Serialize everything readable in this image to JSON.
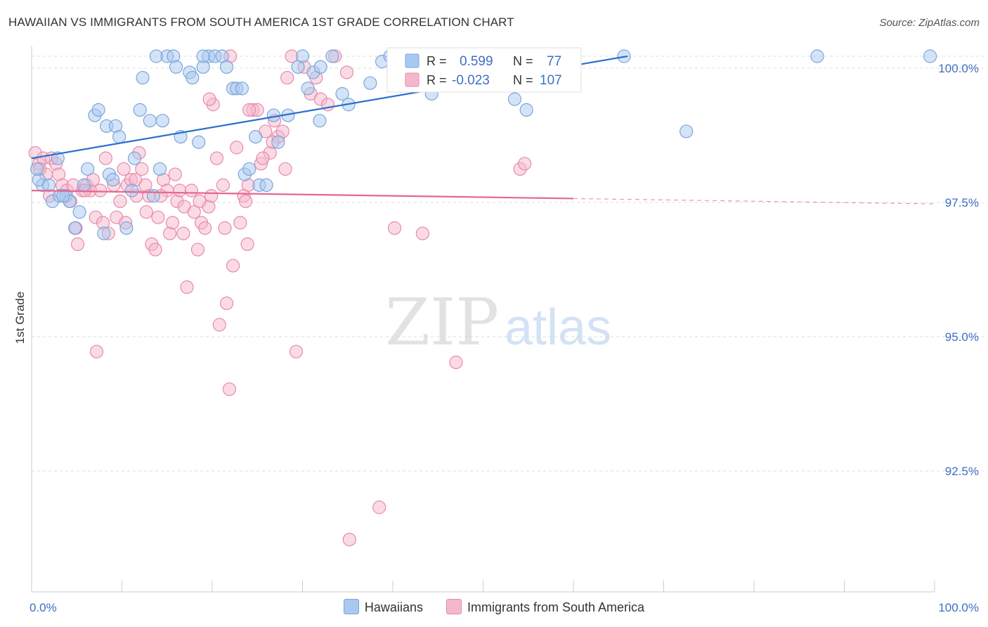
{
  "title": "HAWAIIAN VS IMMIGRANTS FROM SOUTH AMERICA 1ST GRADE CORRELATION CHART",
  "source": "Source: ZipAtlas.com",
  "watermark": {
    "zip": "ZIP",
    "atlas": "atlas"
  },
  "colors": {
    "blue_fill": "#a9c8f0",
    "blue_stroke": "#7aa6dc",
    "blue_line": "#2a6fcd",
    "pink_fill": "#f5b7cc",
    "pink_stroke": "#e88aa9",
    "pink_line": "#e4688f",
    "value_text": "#3d6fc4",
    "grid": "#dddddd"
  },
  "stats_legend": {
    "rows": [
      {
        "r_label": "R =",
        "r_value": "0.599",
        "n_label": "N =",
        "n_value": "77",
        "color": "blue"
      },
      {
        "r_label": "R =",
        "r_value": "-0.023",
        "n_label": "N =",
        "n_value": "107",
        "color": "pink"
      }
    ]
  },
  "chart_data": {
    "type": "scatter",
    "title": "HAWAIIAN VS IMMIGRANTS FROM SOUTH AMERICA 1ST GRADE CORRELATION CHART",
    "xlabel": "",
    "ylabel": "1st Grade",
    "xlim": [
      0,
      100
    ],
    "ylim": [
      90.0,
      100.4
    ],
    "x_tick_labels": [
      "0.0%",
      "100.0%"
    ],
    "y_ticks": [
      {
        "value": 100.0,
        "label": "100.0%"
      },
      {
        "value": 97.5,
        "label": "97.5%"
      },
      {
        "value": 95.0,
        "label": "95.0%"
      },
      {
        "value": 92.5,
        "label": "92.5%"
      }
    ],
    "grid": "horizontal dashed",
    "legend_position": "bottom-center",
    "series": [
      {
        "name": "Hawaiians",
        "color": "#a9c8f0",
        "trend": {
          "x0": 0,
          "y0": 98.1,
          "x1": 66,
          "y1": 100.0,
          "dashed_to": 66
        },
        "points": [
          [
            1.2,
            97.6
          ],
          [
            0.8,
            97.7
          ],
          [
            1.9,
            97.6
          ],
          [
            2.3,
            97.3
          ],
          [
            2.9,
            98.1
          ],
          [
            3.1,
            97.4
          ],
          [
            3.8,
            97.4
          ],
          [
            4.2,
            97.3
          ],
          [
            4.8,
            96.8
          ],
          [
            5.3,
            97.1
          ],
          [
            5.8,
            97.6
          ],
          [
            6.2,
            97.9
          ],
          [
            7.0,
            98.9
          ],
          [
            7.4,
            99.0
          ],
          [
            8.3,
            98.7
          ],
          [
            9.3,
            98.7
          ],
          [
            9.7,
            98.5
          ],
          [
            8.6,
            97.8
          ],
          [
            8.0,
            96.7
          ],
          [
            10.5,
            96.8
          ],
          [
            11.1,
            97.5
          ],
          [
            11.4,
            98.1
          ],
          [
            12.0,
            99.0
          ],
          [
            12.3,
            99.6
          ],
          [
            13.1,
            98.8
          ],
          [
            13.5,
            97.4
          ],
          [
            14.2,
            97.9
          ],
          [
            14.5,
            98.8
          ],
          [
            15.0,
            100.0
          ],
          [
            15.7,
            100.0
          ],
          [
            13.8,
            100.0
          ],
          [
            16.0,
            99.8
          ],
          [
            16.5,
            98.5
          ],
          [
            17.5,
            99.7
          ],
          [
            17.8,
            99.6
          ],
          [
            18.5,
            98.4
          ],
          [
            19.0,
            99.8
          ],
          [
            19.6,
            100.0
          ],
          [
            20.3,
            100.0
          ],
          [
            21.1,
            100.0
          ],
          [
            21.6,
            99.8
          ],
          [
            22.3,
            99.4
          ],
          [
            22.7,
            99.4
          ],
          [
            23.3,
            99.4
          ],
          [
            23.6,
            97.8
          ],
          [
            24.1,
            97.9
          ],
          [
            24.8,
            98.5
          ],
          [
            25.2,
            97.6
          ],
          [
            26.8,
            98.9
          ],
          [
            27.3,
            98.4
          ],
          [
            28.4,
            98.9
          ],
          [
            29.5,
            99.8
          ],
          [
            30.0,
            100.0
          ],
          [
            30.6,
            99.4
          ],
          [
            31.2,
            99.7
          ],
          [
            31.9,
            98.8
          ],
          [
            32.0,
            99.8
          ],
          [
            33.3,
            100.0
          ],
          [
            34.4,
            99.3
          ],
          [
            35.1,
            99.1
          ],
          [
            37.5,
            99.5
          ],
          [
            38.8,
            99.9
          ],
          [
            39.7,
            100.0
          ],
          [
            43.6,
            100.0
          ],
          [
            44.3,
            99.3
          ],
          [
            53.5,
            99.2
          ],
          [
            54.8,
            99.0
          ],
          [
            56.5,
            100.0
          ],
          [
            65.6,
            100.0
          ],
          [
            72.5,
            98.6
          ],
          [
            87.0,
            100.0
          ],
          [
            99.5,
            100.0
          ],
          [
            0.6,
            97.9
          ],
          [
            3.5,
            97.4
          ],
          [
            9.0,
            97.7
          ],
          [
            26.0,
            97.6
          ],
          [
            19.0,
            100.0
          ]
        ]
      },
      {
        "name": "Immigrants from South America",
        "color": "#f5b7cc",
        "trend": {
          "x0": 0,
          "y0": 97.5,
          "x1": 60,
          "y1": 97.35,
          "dashed_to": 100
        },
        "points": [
          [
            0.4,
            98.2
          ],
          [
            0.8,
            98.0
          ],
          [
            1.3,
            98.1
          ],
          [
            1.6,
            97.8
          ],
          [
            2.2,
            98.1
          ],
          [
            2.7,
            98.0
          ],
          [
            3.0,
            97.8
          ],
          [
            3.4,
            97.6
          ],
          [
            3.9,
            97.5
          ],
          [
            4.3,
            97.3
          ],
          [
            4.9,
            96.8
          ],
          [
            5.1,
            96.5
          ],
          [
            5.6,
            97.5
          ],
          [
            6.1,
            97.6
          ],
          [
            6.5,
            97.5
          ],
          [
            7.1,
            97.0
          ],
          [
            7.6,
            97.5
          ],
          [
            7.9,
            96.9
          ],
          [
            8.2,
            98.1
          ],
          [
            8.5,
            96.7
          ],
          [
            9.1,
            97.6
          ],
          [
            9.4,
            97.0
          ],
          [
            9.8,
            97.3
          ],
          [
            10.2,
            97.9
          ],
          [
            10.6,
            97.6
          ],
          [
            11.0,
            97.7
          ],
          [
            11.5,
            97.7
          ],
          [
            11.9,
            98.2
          ],
          [
            12.2,
            97.9
          ],
          [
            12.6,
            97.6
          ],
          [
            13.0,
            97.4
          ],
          [
            13.3,
            96.5
          ],
          [
            13.7,
            96.4
          ],
          [
            14.0,
            97.0
          ],
          [
            14.6,
            97.7
          ],
          [
            15.0,
            97.5
          ],
          [
            15.3,
            96.7
          ],
          [
            15.6,
            96.9
          ],
          [
            16.1,
            97.3
          ],
          [
            16.4,
            97.5
          ],
          [
            16.9,
            97.2
          ],
          [
            17.2,
            95.7
          ],
          [
            17.7,
            97.5
          ],
          [
            18.0,
            97.1
          ],
          [
            18.4,
            96.4
          ],
          [
            18.8,
            96.9
          ],
          [
            19.2,
            96.8
          ],
          [
            19.6,
            97.2
          ],
          [
            20.1,
            99.1
          ],
          [
            20.5,
            98.1
          ],
          [
            20.8,
            95.0
          ],
          [
            21.2,
            97.6
          ],
          [
            21.6,
            95.4
          ],
          [
            21.9,
            93.8
          ],
          [
            22.3,
            96.1
          ],
          [
            22.7,
            98.3
          ],
          [
            23.1,
            96.9
          ],
          [
            23.5,
            97.4
          ],
          [
            24.0,
            97.6
          ],
          [
            24.5,
            99.0
          ],
          [
            25.0,
            99.0
          ],
          [
            25.4,
            98.0
          ],
          [
            25.9,
            98.6
          ],
          [
            26.4,
            98.2
          ],
          [
            26.9,
            98.8
          ],
          [
            27.3,
            98.5
          ],
          [
            27.8,
            98.6
          ],
          [
            28.3,
            99.6
          ],
          [
            28.8,
            100.0
          ],
          [
            29.3,
            94.5
          ],
          [
            30.2,
            99.8
          ],
          [
            30.9,
            99.3
          ],
          [
            31.5,
            99.6
          ],
          [
            32.0,
            99.2
          ],
          [
            32.8,
            99.1
          ],
          [
            33.6,
            100.0
          ],
          [
            34.9,
            99.7
          ],
          [
            35.2,
            91.0
          ],
          [
            38.5,
            91.6
          ],
          [
            40.2,
            96.8
          ],
          [
            43.3,
            96.7
          ],
          [
            47.0,
            94.3
          ],
          [
            54.1,
            97.9
          ],
          [
            54.6,
            98.0
          ],
          [
            7.2,
            94.5
          ],
          [
            4.6,
            97.6
          ],
          [
            2.0,
            97.4
          ],
          [
            10.4,
            96.9
          ],
          [
            14.3,
            97.4
          ],
          [
            23.7,
            97.3
          ],
          [
            22.0,
            100.0
          ],
          [
            19.7,
            99.2
          ],
          [
            24.1,
            99.0
          ],
          [
            28.1,
            97.9
          ],
          [
            12.7,
            97.1
          ],
          [
            16.8,
            96.7
          ],
          [
            19.9,
            97.4
          ],
          [
            25.6,
            98.1
          ],
          [
            0.9,
            97.9
          ],
          [
            5.9,
            97.5
          ],
          [
            11.6,
            97.4
          ],
          [
            15.9,
            97.8
          ],
          [
            18.6,
            97.3
          ],
          [
            21.4,
            96.8
          ],
          [
            23.9,
            96.5
          ],
          [
            26.7,
            98.4
          ],
          [
            6.8,
            97.7
          ]
        ]
      }
    ]
  }
}
